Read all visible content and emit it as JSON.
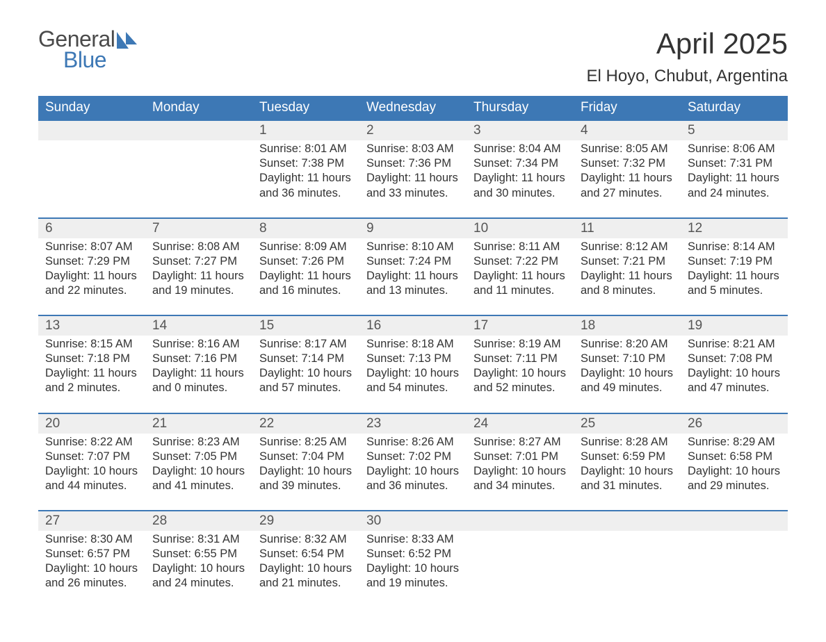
{
  "brand": {
    "part1": "General",
    "part2": "Blue"
  },
  "colors": {
    "brand_blue": "#3d78b5",
    "row_bg": "#efefef",
    "text": "#333333",
    "white": "#ffffff"
  },
  "title": "April 2025",
  "location": "El Hoyo, Chubut, Argentina",
  "day_headers": [
    "Sunday",
    "Monday",
    "Tuesday",
    "Wednesday",
    "Thursday",
    "Friday",
    "Saturday"
  ],
  "weeks": [
    [
      null,
      null,
      {
        "n": "1",
        "sr": "Sunrise: 8:01 AM",
        "ss": "Sunset: 7:38 PM",
        "d1": "Daylight: 11 hours",
        "d2": "and 36 minutes."
      },
      {
        "n": "2",
        "sr": "Sunrise: 8:03 AM",
        "ss": "Sunset: 7:36 PM",
        "d1": "Daylight: 11 hours",
        "d2": "and 33 minutes."
      },
      {
        "n": "3",
        "sr": "Sunrise: 8:04 AM",
        "ss": "Sunset: 7:34 PM",
        "d1": "Daylight: 11 hours",
        "d2": "and 30 minutes."
      },
      {
        "n": "4",
        "sr": "Sunrise: 8:05 AM",
        "ss": "Sunset: 7:32 PM",
        "d1": "Daylight: 11 hours",
        "d2": "and 27 minutes."
      },
      {
        "n": "5",
        "sr": "Sunrise: 8:06 AM",
        "ss": "Sunset: 7:31 PM",
        "d1": "Daylight: 11 hours",
        "d2": "and 24 minutes."
      }
    ],
    [
      {
        "n": "6",
        "sr": "Sunrise: 8:07 AM",
        "ss": "Sunset: 7:29 PM",
        "d1": "Daylight: 11 hours",
        "d2": "and 22 minutes."
      },
      {
        "n": "7",
        "sr": "Sunrise: 8:08 AM",
        "ss": "Sunset: 7:27 PM",
        "d1": "Daylight: 11 hours",
        "d2": "and 19 minutes."
      },
      {
        "n": "8",
        "sr": "Sunrise: 8:09 AM",
        "ss": "Sunset: 7:26 PM",
        "d1": "Daylight: 11 hours",
        "d2": "and 16 minutes."
      },
      {
        "n": "9",
        "sr": "Sunrise: 8:10 AM",
        "ss": "Sunset: 7:24 PM",
        "d1": "Daylight: 11 hours",
        "d2": "and 13 minutes."
      },
      {
        "n": "10",
        "sr": "Sunrise: 8:11 AM",
        "ss": "Sunset: 7:22 PM",
        "d1": "Daylight: 11 hours",
        "d2": "and 11 minutes."
      },
      {
        "n": "11",
        "sr": "Sunrise: 8:12 AM",
        "ss": "Sunset: 7:21 PM",
        "d1": "Daylight: 11 hours",
        "d2": "and 8 minutes."
      },
      {
        "n": "12",
        "sr": "Sunrise: 8:14 AM",
        "ss": "Sunset: 7:19 PM",
        "d1": "Daylight: 11 hours",
        "d2": "and 5 minutes."
      }
    ],
    [
      {
        "n": "13",
        "sr": "Sunrise: 8:15 AM",
        "ss": "Sunset: 7:18 PM",
        "d1": "Daylight: 11 hours",
        "d2": "and 2 minutes."
      },
      {
        "n": "14",
        "sr": "Sunrise: 8:16 AM",
        "ss": "Sunset: 7:16 PM",
        "d1": "Daylight: 11 hours",
        "d2": "and 0 minutes."
      },
      {
        "n": "15",
        "sr": "Sunrise: 8:17 AM",
        "ss": "Sunset: 7:14 PM",
        "d1": "Daylight: 10 hours",
        "d2": "and 57 minutes."
      },
      {
        "n": "16",
        "sr": "Sunrise: 8:18 AM",
        "ss": "Sunset: 7:13 PM",
        "d1": "Daylight: 10 hours",
        "d2": "and 54 minutes."
      },
      {
        "n": "17",
        "sr": "Sunrise: 8:19 AM",
        "ss": "Sunset: 7:11 PM",
        "d1": "Daylight: 10 hours",
        "d2": "and 52 minutes."
      },
      {
        "n": "18",
        "sr": "Sunrise: 8:20 AM",
        "ss": "Sunset: 7:10 PM",
        "d1": "Daylight: 10 hours",
        "d2": "and 49 minutes."
      },
      {
        "n": "19",
        "sr": "Sunrise: 8:21 AM",
        "ss": "Sunset: 7:08 PM",
        "d1": "Daylight: 10 hours",
        "d2": "and 47 minutes."
      }
    ],
    [
      {
        "n": "20",
        "sr": "Sunrise: 8:22 AM",
        "ss": "Sunset: 7:07 PM",
        "d1": "Daylight: 10 hours",
        "d2": "and 44 minutes."
      },
      {
        "n": "21",
        "sr": "Sunrise: 8:23 AM",
        "ss": "Sunset: 7:05 PM",
        "d1": "Daylight: 10 hours",
        "d2": "and 41 minutes."
      },
      {
        "n": "22",
        "sr": "Sunrise: 8:25 AM",
        "ss": "Sunset: 7:04 PM",
        "d1": "Daylight: 10 hours",
        "d2": "and 39 minutes."
      },
      {
        "n": "23",
        "sr": "Sunrise: 8:26 AM",
        "ss": "Sunset: 7:02 PM",
        "d1": "Daylight: 10 hours",
        "d2": "and 36 minutes."
      },
      {
        "n": "24",
        "sr": "Sunrise: 8:27 AM",
        "ss": "Sunset: 7:01 PM",
        "d1": "Daylight: 10 hours",
        "d2": "and 34 minutes."
      },
      {
        "n": "25",
        "sr": "Sunrise: 8:28 AM",
        "ss": "Sunset: 6:59 PM",
        "d1": "Daylight: 10 hours",
        "d2": "and 31 minutes."
      },
      {
        "n": "26",
        "sr": "Sunrise: 8:29 AM",
        "ss": "Sunset: 6:58 PM",
        "d1": "Daylight: 10 hours",
        "d2": "and 29 minutes."
      }
    ],
    [
      {
        "n": "27",
        "sr": "Sunrise: 8:30 AM",
        "ss": "Sunset: 6:57 PM",
        "d1": "Daylight: 10 hours",
        "d2": "and 26 minutes."
      },
      {
        "n": "28",
        "sr": "Sunrise: 8:31 AM",
        "ss": "Sunset: 6:55 PM",
        "d1": "Daylight: 10 hours",
        "d2": "and 24 minutes."
      },
      {
        "n": "29",
        "sr": "Sunrise: 8:32 AM",
        "ss": "Sunset: 6:54 PM",
        "d1": "Daylight: 10 hours",
        "d2": "and 21 minutes."
      },
      {
        "n": "30",
        "sr": "Sunrise: 8:33 AM",
        "ss": "Sunset: 6:52 PM",
        "d1": "Daylight: 10 hours",
        "d2": "and 19 minutes."
      },
      null,
      null,
      null
    ]
  ]
}
